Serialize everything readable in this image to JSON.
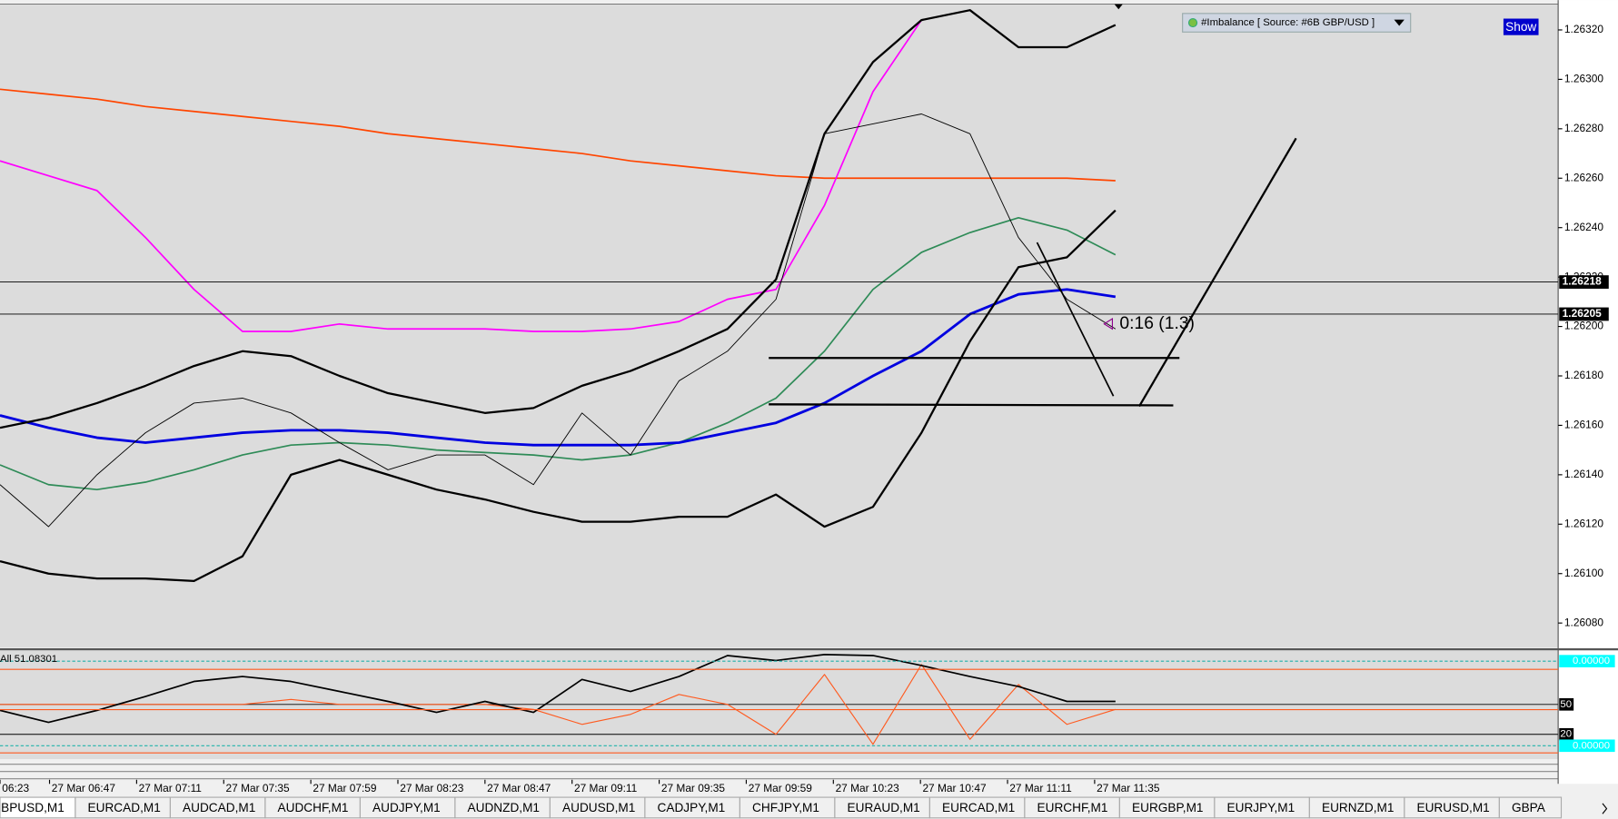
{
  "toolbar": {
    "indicator": "#Imbalance [ Source: #6B GBP/USD ]",
    "button": "Show"
  },
  "chart_data": [
    {
      "type": "line",
      "ylim": [
        1.2607,
        1.2633
      ],
      "yticks": [
        {
          "value": 1.2608,
          "label": "1.26080"
        },
        {
          "value": 1.261,
          "label": "1.26100"
        },
        {
          "value": 1.2612,
          "label": "1.26120"
        },
        {
          "value": 1.2614,
          "label": "1.26140"
        },
        {
          "value": 1.2616,
          "label": "1.26160"
        },
        {
          "value": 1.2618,
          "label": "1.26180"
        },
        {
          "value": 1.262,
          "label": "1.26200"
        },
        {
          "value": 1.2622,
          "label": "1.26220"
        },
        {
          "value": 1.2624,
          "label": "1.26240"
        },
        {
          "value": 1.2626,
          "label": "1.26260"
        },
        {
          "value": 1.2628,
          "label": "1.26280"
        },
        {
          "value": 1.263,
          "label": "1.26300"
        },
        {
          "value": 1.2632,
          "label": "1.26320"
        }
      ],
      "price_lines": [
        1.26218,
        1.26205
      ],
      "annotation": "0:16 (1.3)",
      "x_labels": [
        "06:23",
        "27 Mar 06:47",
        "27 Mar 07:11",
        "27 Mar 07:35",
        "27 Mar 07:59",
        "27 Mar 08:23",
        "27 Mar 08:47",
        "27 Mar 09:11",
        "27 Mar 09:35",
        "27 Mar 09:59",
        "27 Mar 10:23",
        "27 Mar 10:47",
        "27 Mar 11:11",
        "27 Mar 11:35"
      ],
      "series": [
        {
          "color": "#ff4500",
          "width": 1.5,
          "values": [
            1.26296,
            1.26294,
            1.26292,
            1.26289,
            1.26287,
            1.26285,
            1.26283,
            1.26281,
            1.26278,
            1.26276,
            1.26274,
            1.26272,
            1.2627,
            1.26267,
            1.26265,
            1.26263,
            1.26261,
            1.2626,
            1.2626,
            1.2626,
            1.2626,
            1.2626,
            1.2626,
            1.26259
          ]
        },
        {
          "color": "#ff00ff",
          "width": 1.5,
          "values": [
            1.26267,
            1.26261,
            1.26255,
            1.26236,
            1.26215,
            1.26198,
            1.26198,
            1.26201,
            1.26199,
            1.26199,
            1.26199,
            1.26198,
            1.26198,
            1.26199,
            1.26202,
            1.26211,
            1.26215,
            1.26249,
            1.26295,
            1.26324,
            null,
            null,
            null,
            null
          ]
        },
        {
          "color": "#2e8b57",
          "width": 1.5,
          "values": [
            1.26144,
            1.26136,
            1.26134,
            1.26137,
            1.26142,
            1.26148,
            1.26152,
            1.26153,
            1.26152,
            1.2615,
            1.26149,
            1.26148,
            1.26146,
            1.26148,
            1.26153,
            1.26161,
            1.26171,
            1.2619,
            1.26215,
            1.2623,
            1.26238,
            1.26244,
            1.26239,
            1.26229
          ]
        },
        {
          "color": "#0000e0",
          "width": 2.5,
          "values": [
            1.26164,
            1.26159,
            1.26155,
            1.26153,
            1.26155,
            1.26157,
            1.26158,
            1.26158,
            1.26157,
            1.26155,
            1.26153,
            1.26152,
            1.26152,
            1.26152,
            1.26153,
            1.26157,
            1.26161,
            1.26169,
            1.2618,
            1.2619,
            1.26205,
            1.26213,
            1.26215,
            1.26212
          ]
        },
        {
          "color": "#000000",
          "width": 2,
          "values": [
            1.26159,
            1.26163,
            1.26169,
            1.26176,
            1.26184,
            1.2619,
            1.26188,
            1.2618,
            1.26173,
            1.26169,
            1.26165,
            1.26167,
            1.26176,
            1.26182,
            1.2619,
            1.26199,
            1.26219,
            1.26278,
            1.26307,
            1.26324,
            1.26328,
            1.26313,
            1.26313,
            1.26322
          ]
        },
        {
          "color": "#000000",
          "width": 2,
          "values": [
            1.26105,
            1.261,
            1.26098,
            1.26098,
            1.26097,
            1.26107,
            1.2614,
            1.26146,
            1.2614,
            1.26134,
            1.2613,
            1.26125,
            1.26121,
            1.26121,
            1.26123,
            1.26123,
            1.26132,
            1.26119,
            1.26127,
            1.26157,
            1.26194,
            1.26224,
            1.26228,
            1.26247
          ]
        },
        {
          "color": "#000000",
          "width": 0.8,
          "values": [
            1.26136,
            1.26119,
            1.2614,
            1.26157,
            1.26169,
            1.26171,
            1.26165,
            1.26153,
            1.26142,
            1.26148,
            1.26148,
            1.26136,
            1.26165,
            1.26148,
            1.26178,
            1.2619,
            1.26211,
            1.26278,
            1.26282,
            1.26286,
            1.26278,
            1.26236,
            1.26211,
            1.26199
          ]
        }
      ]
    },
    {
      "type": "line",
      "label": "All 51.08301",
      "ylim": [
        0,
        100
      ],
      "yticks": [
        20,
        50
      ],
      "level_labels": [
        "0.00000",
        "0.00000"
      ],
      "series": [
        {
          "color": "#ff5a1f",
          "width": 1,
          "values": [
            50,
            50,
            50,
            50,
            50,
            50,
            55,
            50,
            50,
            50,
            50,
            45,
            30,
            40,
            60,
            50,
            20,
            80,
            10,
            90,
            15,
            70,
            30,
            45
          ]
        },
        {
          "color": "#000000",
          "width": 1.5,
          "values": [
            44,
            32,
            44,
            58,
            73,
            78,
            73,
            63,
            53,
            42,
            53,
            42,
            75,
            63,
            78,
            99,
            94,
            100,
            99,
            89,
            78,
            68,
            53,
            53
          ]
        }
      ]
    }
  ],
  "tabs": [
    "BPUSD,M1",
    "EURCAD,M1",
    "AUDCAD,M1",
    "AUDCHF,M1",
    "AUDJPY,M1",
    "AUDNZD,M1",
    "AUDUSD,M1",
    "CADJPY,M1",
    "CHFJPY,M1",
    "EURAUD,M1",
    "EURCAD,M1",
    "EURCHF,M1",
    "EURGBP,M1",
    "EURJPY,M1",
    "EURNZD,M1",
    "EURUSD,M1",
    "GBPA"
  ]
}
